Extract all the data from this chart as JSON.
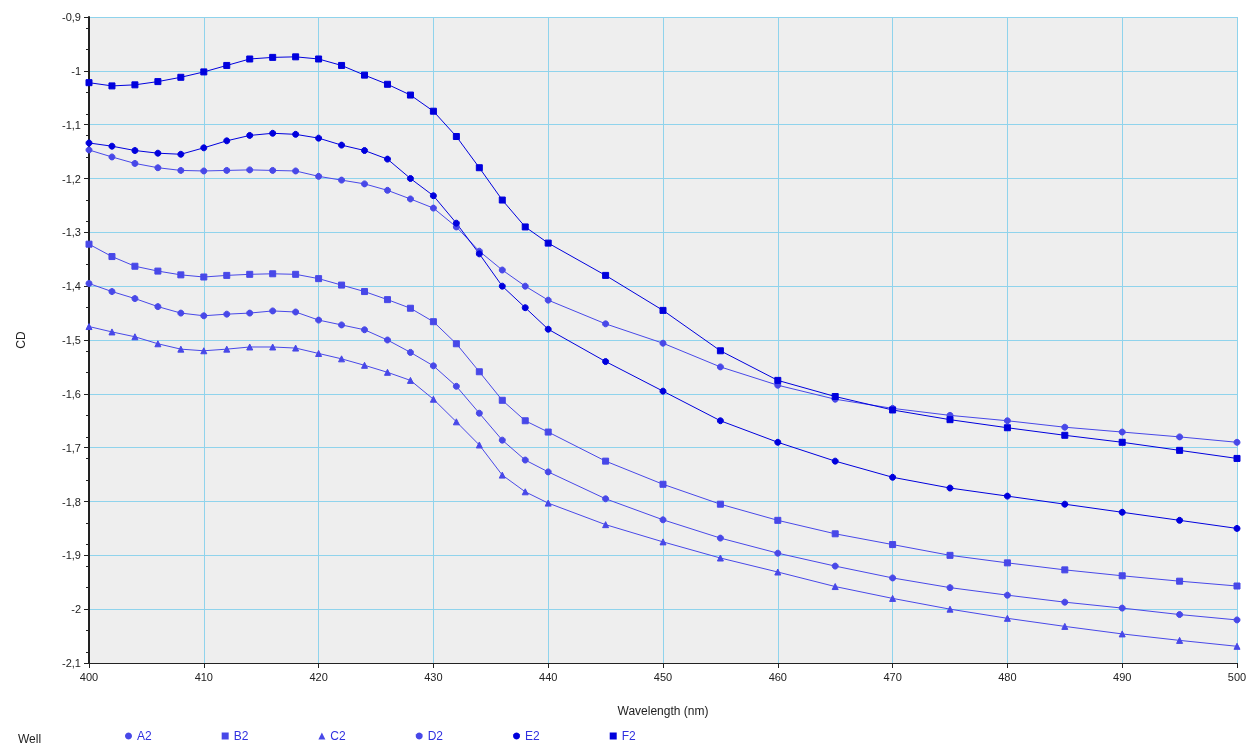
{
  "chart_data": {
    "type": "line",
    "xlabel": "Wavelength (nm)",
    "ylabel": "CD",
    "legend_title": "Well",
    "legend": "bottom",
    "grid": true,
    "line_style": "solid",
    "xlim": [
      400,
      500
    ],
    "xticks": [
      400,
      410,
      420,
      430,
      440,
      450,
      460,
      470,
      480,
      490,
      500
    ],
    "ylim": [
      -2.1,
      -0.9
    ],
    "yticks": [
      {
        "value": -0.9,
        "label": "-0,9"
      },
      -1,
      {
        "value": -1.1,
        "label": "-1,1"
      },
      {
        "value": -1.2,
        "label": "-1,2"
      },
      {
        "value": -1.3,
        "label": "-1,3"
      },
      {
        "value": -1.4,
        "label": "-1,4"
      },
      {
        "value": -1.5,
        "label": "-1,5"
      },
      {
        "value": -1.6,
        "label": "-1,6"
      },
      {
        "value": -1.7,
        "label": "-1,7"
      },
      {
        "value": -1.8,
        "label": "-1,8"
      },
      {
        "value": -1.9,
        "label": "-1,9"
      },
      -2,
      {
        "value": -2.1,
        "label": "-2,1"
      }
    ],
    "x": [
      400,
      402,
      404,
      406,
      408,
      410,
      412,
      414,
      416,
      418,
      420,
      422,
      424,
      426,
      428,
      430,
      432,
      434,
      436,
      438,
      440,
      445,
      450,
      455,
      460,
      465,
      470,
      475,
      480,
      485,
      490,
      495,
      500
    ],
    "series": [
      {
        "name": "A2",
        "color": "#4848e8",
        "marker": "circle",
        "values": [
          -1.395,
          -1.41,
          -1.423,
          -1.438,
          -1.45,
          -1.455,
          -1.452,
          -1.45,
          -1.446,
          -1.448,
          -1.463,
          -1.472,
          -1.481,
          -1.5,
          -1.523,
          -1.548,
          -1.586,
          -1.636,
          -1.686,
          -1.723,
          -1.745,
          -1.795,
          -1.834,
          -1.868,
          -1.896,
          -1.92,
          -1.942,
          -1.96,
          -1.974,
          -1.987,
          -1.998,
          -2.01,
          -2.02
        ]
      },
      {
        "name": "B2",
        "color": "#4848e8",
        "marker": "square",
        "values": [
          -1.322,
          -1.345,
          -1.363,
          -1.372,
          -1.379,
          -1.383,
          -1.38,
          -1.378,
          -1.377,
          -1.378,
          -1.386,
          -1.398,
          -1.41,
          -1.425,
          -1.441,
          -1.466,
          -1.507,
          -1.559,
          -1.612,
          -1.65,
          -1.671,
          -1.725,
          -1.768,
          -1.805,
          -1.835,
          -1.86,
          -1.88,
          -1.9,
          -1.914,
          -1.927,
          -1.938,
          -1.948,
          -1.957
        ]
      },
      {
        "name": "C2",
        "color": "#4848e8",
        "marker": "triangle",
        "values": [
          -1.475,
          -1.485,
          -1.494,
          -1.507,
          -1.517,
          -1.52,
          -1.517,
          -1.513,
          -1.513,
          -1.515,
          -1.525,
          -1.535,
          -1.547,
          -1.56,
          -1.575,
          -1.61,
          -1.652,
          -1.695,
          -1.751,
          -1.782,
          -1.803,
          -1.843,
          -1.875,
          -1.905,
          -1.931,
          -1.958,
          -1.98,
          -2.0,
          -2.017,
          -2.032,
          -2.046,
          -2.058,
          -2.069
        ]
      },
      {
        "name": "D2",
        "color": "#4848e8",
        "marker": "circle",
        "values": [
          -1.147,
          -1.16,
          -1.172,
          -1.18,
          -1.185,
          -1.186,
          -1.185,
          -1.184,
          -1.185,
          -1.186,
          -1.196,
          -1.203,
          -1.21,
          -1.222,
          -1.238,
          -1.255,
          -1.29,
          -1.335,
          -1.37,
          -1.4,
          -1.426,
          -1.47,
          -1.506,
          -1.55,
          -1.584,
          -1.61,
          -1.627,
          -1.64,
          -1.65,
          -1.662,
          -1.671,
          -1.68,
          -1.69
        ]
      },
      {
        "name": "E2",
        "color": "#0000dd",
        "marker": "circle",
        "values": [
          -1.134,
          -1.14,
          -1.148,
          -1.153,
          -1.155,
          -1.143,
          -1.13,
          -1.12,
          -1.116,
          -1.118,
          -1.125,
          -1.138,
          -1.148,
          -1.164,
          -1.2,
          -1.232,
          -1.283,
          -1.34,
          -1.4,
          -1.44,
          -1.48,
          -1.54,
          -1.595,
          -1.65,
          -1.69,
          -1.725,
          -1.755,
          -1.775,
          -1.79,
          -1.805,
          -1.82,
          -1.835,
          -1.85
        ]
      },
      {
        "name": "F2",
        "color": "#0000dd",
        "marker": "square",
        "values": [
          -1.022,
          -1.028,
          -1.026,
          -1.02,
          -1.012,
          -1.002,
          -0.99,
          -0.978,
          -0.975,
          -0.974,
          -0.978,
          -0.99,
          -1.008,
          -1.025,
          -1.045,
          -1.075,
          -1.122,
          -1.18,
          -1.24,
          -1.29,
          -1.32,
          -1.38,
          -1.445,
          -1.52,
          -1.575,
          -1.605,
          -1.63,
          -1.648,
          -1.663,
          -1.677,
          -1.69,
          -1.705,
          -1.72
        ]
      }
    ]
  }
}
